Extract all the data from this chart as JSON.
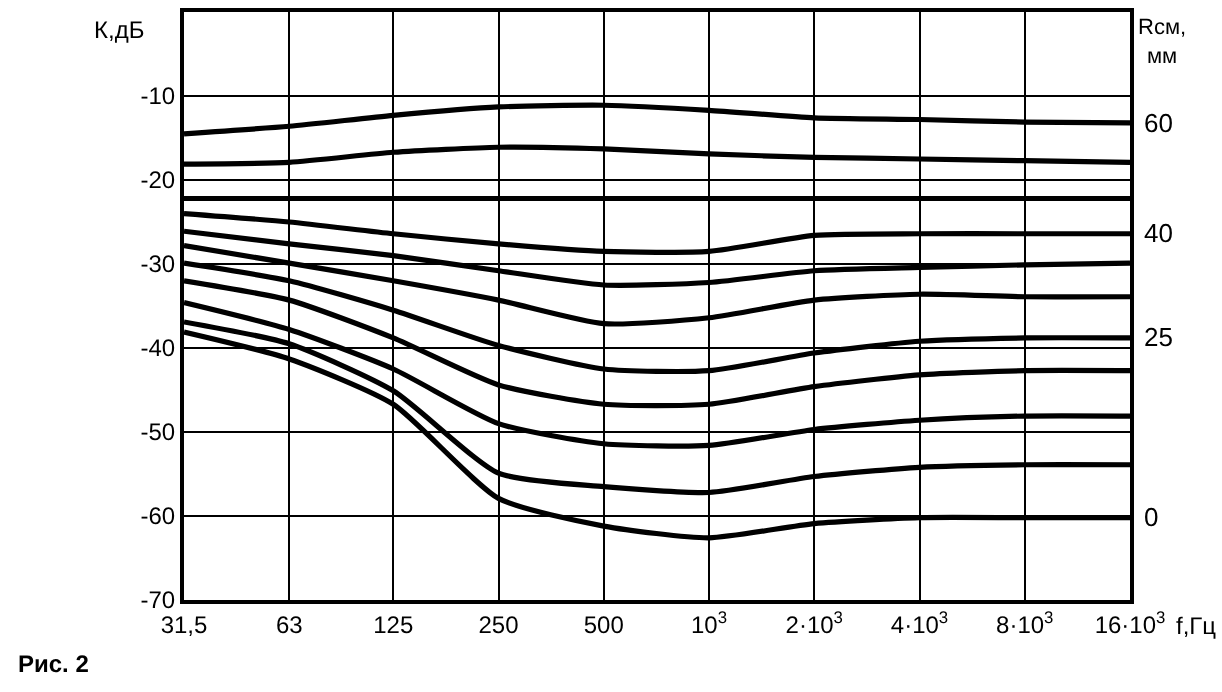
{
  "chart_data": {
    "type": "line",
    "ylabel": "К,дБ",
    "xlabel": "f,Гц",
    "y2label": "Rсм, мм",
    "annotations": [
      "Рис. 2"
    ],
    "x": [
      31.5,
      63,
      125,
      250,
      500,
      1000,
      2000,
      4000,
      8000,
      16000
    ],
    "log": "x",
    "grid": true,
    "legend": false,
    "marker": "none",
    "line_style": "solid",
    "xlim": [
      31.5,
      16000
    ],
    "xticks": [
      {
        "value": 31.5,
        "label": "31,5"
      },
      63,
      125,
      250,
      500,
      {
        "value": 1000,
        "label": "10$^{3}$"
      },
      {
        "value": 2000,
        "label": "2·10$^{3}$"
      },
      {
        "value": 4000,
        "label": "4·10$^{3}$"
      },
      {
        "value": 8000,
        "label": "8·10$^{3}$"
      },
      {
        "value": 16000,
        "label": "16·10$^{3}$"
      }
    ],
    "ylim": [
      -70,
      0
    ],
    "yticks": [
      -70,
      -60,
      -50,
      -40,
      -30,
      -20,
      -10
    ],
    "series": [
      {
        "name": "60",
        "color": "#000000",
        "values": [
          -14.5,
          -13.6,
          -12.3,
          -11.3,
          -11.1,
          -11.7,
          -12.6,
          -12.8,
          -13.1,
          -13.2
        ]
      },
      {
        "color": "#000000",
        "values": [
          -18.1,
          -17.9,
          -16.7,
          -16.1,
          -16.3,
          -16.9,
          -17.3,
          -17.5,
          -17.7,
          -17.9
        ]
      },
      {
        "color": "#000000",
        "values": [
          -22.2,
          -22.2,
          -22.2,
          -22.2,
          -22.2,
          -22.2,
          -22.2,
          -22.2,
          -22.2,
          -22.2
        ]
      },
      {
        "name": "40",
        "color": "#000000",
        "values": [
          -24.0,
          -25.0,
          -26.4,
          -27.6,
          -28.5,
          -28.5,
          -26.6,
          -26.4,
          -26.4,
          -26.4
        ]
      },
      {
        "color": "#000000",
        "values": [
          -26.1,
          -27.6,
          -29.0,
          -30.8,
          -32.5,
          -32.2,
          -30.8,
          -30.4,
          -30.1,
          -29.9
        ]
      },
      {
        "color": "#000000",
        "values": [
          -27.8,
          -29.9,
          -32.0,
          -34.3,
          -37.1,
          -36.4,
          -34.3,
          -33.6,
          -33.9,
          -33.9
        ]
      },
      {
        "name": "25",
        "color": "#000000",
        "values": [
          -29.9,
          -32.0,
          -35.5,
          -39.7,
          -42.5,
          -42.7,
          -40.6,
          -39.2,
          -38.8,
          -38.8
        ]
      },
      {
        "color": "#000000",
        "values": [
          -32.0,
          -34.3,
          -38.8,
          -44.4,
          -46.7,
          -46.7,
          -44.6,
          -43.2,
          -42.7,
          -42.7
        ]
      },
      {
        "color": "#000000",
        "values": [
          -34.6,
          -37.8,
          -42.5,
          -49.0,
          -51.4,
          -51.6,
          -49.7,
          -48.6,
          -48.1,
          -48.1
        ]
      },
      {
        "color": "#000000",
        "values": [
          -36.9,
          -39.5,
          -45.1,
          -54.9,
          -56.5,
          -57.2,
          -55.3,
          -54.2,
          -53.9,
          -53.9
        ]
      },
      {
        "name": "0",
        "color": "#000000",
        "values": [
          -38.1,
          -41.3,
          -46.7,
          -57.9,
          -61.2,
          -62.6,
          -60.9,
          -60.2,
          -60.2,
          -60.2
        ]
      }
    ]
  }
}
